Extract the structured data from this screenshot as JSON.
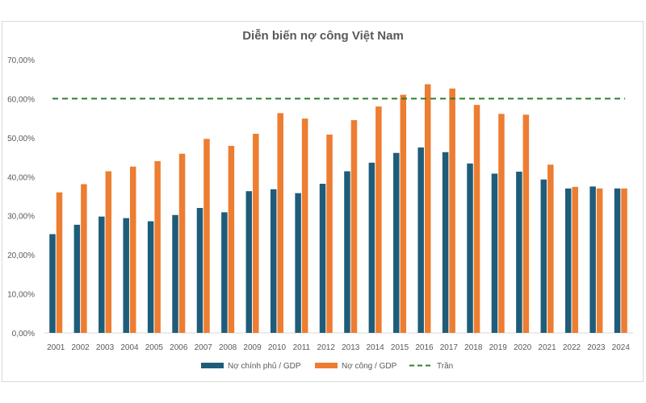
{
  "chart_data": {
    "type": "bar",
    "title": "Diễn biến nợ công Việt Nam",
    "xlabel": "",
    "ylabel": "",
    "ylim": [
      0,
      70
    ],
    "y_ticks": [
      "0,00%",
      "10,00%",
      "20,00%",
      "30,00%",
      "40,00%",
      "50,00%",
      "60,00%",
      "70,00%"
    ],
    "categories": [
      "2001",
      "2002",
      "2003",
      "2004",
      "2005",
      "2006",
      "2007",
      "2008",
      "2009",
      "2010",
      "2011",
      "2012",
      "2013",
      "2014",
      "2015",
      "2016",
      "2017",
      "2018",
      "2019",
      "2020",
      "2021",
      "2022",
      "2023",
      "2024"
    ],
    "series": [
      {
        "name": "Nợ chính phủ / GDP",
        "color": "#1f5c7a",
        "values": [
          25.3,
          27.7,
          29.8,
          29.4,
          28.6,
          30.2,
          32.0,
          30.9,
          36.3,
          36.8,
          35.8,
          38.2,
          41.4,
          43.6,
          46.1,
          47.5,
          46.3,
          43.4,
          40.8,
          41.3,
          39.3,
          37.0,
          37.5,
          37.0
        ]
      },
      {
        "name": "Nợ công / GDP",
        "color": "#ed7d31",
        "values": [
          36.0,
          38.1,
          41.4,
          42.6,
          44.0,
          45.9,
          49.7,
          47.9,
          51.0,
          56.3,
          54.9,
          50.8,
          54.5,
          58.0,
          61.0,
          63.7,
          62.6,
          58.4,
          56.1,
          55.9,
          43.1,
          37.4,
          37.0,
          37.0
        ]
      }
    ],
    "reference_line": {
      "name": "Trần",
      "value": 60,
      "color": "#2e7d32"
    },
    "legend_position": "bottom"
  }
}
